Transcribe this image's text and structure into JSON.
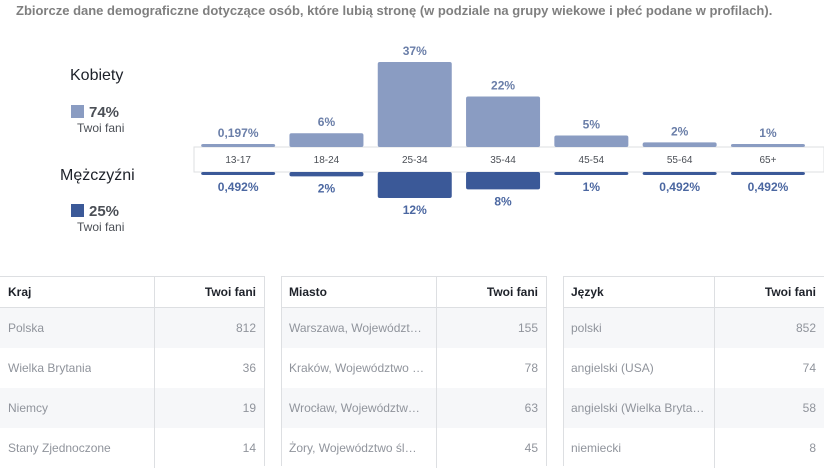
{
  "header": {
    "description": "Zbiorcze dane demograficzne dotyczące osób, które lubią stronę (w podziale na grupy wiekowe i płeć podane w profilach)."
  },
  "women": {
    "title": "Kobiety",
    "percent": "74%",
    "label": "Twoi fani",
    "color": "#8a9cc2"
  },
  "men": {
    "title": "Mężczyźni",
    "percent": "25%",
    "label": "Twoi fani",
    "color": "#3b5998"
  },
  "chart_data": {
    "type": "bar",
    "categories": [
      "13-17",
      "18-24",
      "25-34",
      "35-44",
      "45-54",
      "55-64",
      "65+"
    ],
    "series": [
      {
        "name": "Kobiety",
        "values": [
          0.197,
          6,
          37,
          22,
          5,
          2,
          1
        ],
        "labels": [
          "0,197%",
          "6%",
          "37%",
          "22%",
          "5%",
          "2%",
          "1%"
        ],
        "color": "#8a9cc2"
      },
      {
        "name": "Mężczyźni",
        "values": [
          0.492,
          2,
          12,
          8,
          1,
          0.492,
          0.492
        ],
        "labels": [
          "0,492%",
          "2%",
          "12%",
          "8%",
          "1%",
          "0,492%",
          "0,492%"
        ],
        "color": "#3b5998"
      }
    ]
  },
  "tables": [
    {
      "col1": "Kraj",
      "col2": "Twoi fani",
      "rows": [
        {
          "name": "Polska",
          "value": "812"
        },
        {
          "name": "Wielka Brytania",
          "value": "36"
        },
        {
          "name": "Niemcy",
          "value": "19"
        },
        {
          "name": "Stany Zjednoczone",
          "value": "14"
        }
      ]
    },
    {
      "col1": "Miasto",
      "col2": "Twoi fani",
      "rows": [
        {
          "name": "Warszawa, Województ…",
          "value": "155"
        },
        {
          "name": "Kraków, Województwo …",
          "value": "78"
        },
        {
          "name": "Wrocław, Województw…",
          "value": "63"
        },
        {
          "name": "Żory, Województwo śl…",
          "value": "45"
        }
      ]
    },
    {
      "col1": "Język",
      "col2": "Twoi fani",
      "rows": [
        {
          "name": "polski",
          "value": "852"
        },
        {
          "name": "angielski (USA)",
          "value": "74"
        },
        {
          "name": "angielski (Wielka Bryta…",
          "value": "58"
        },
        {
          "name": "niemiecki",
          "value": "8"
        }
      ]
    }
  ]
}
